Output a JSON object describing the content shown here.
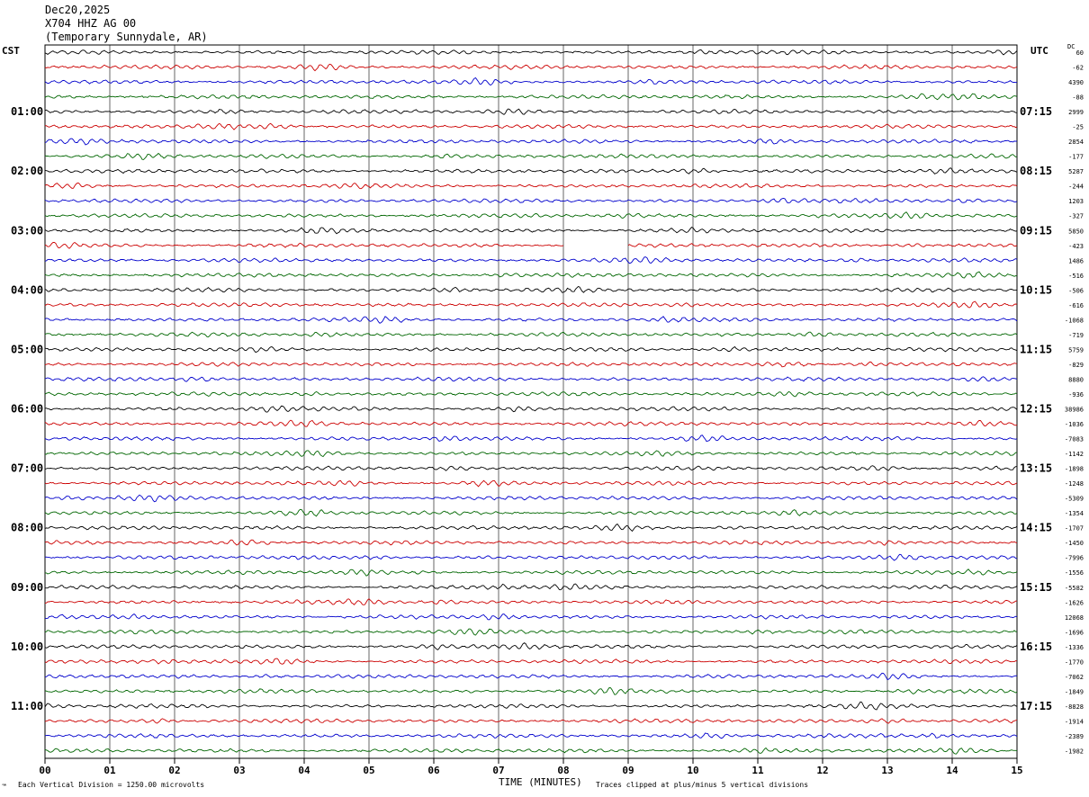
{
  "header": {
    "date": "Dec20,2025",
    "station": "X704 HHZ AG 00",
    "location": "(Temporary Sunnydale, AR)"
  },
  "left_axis_label": "CST",
  "right_axis_label": "UTC",
  "dc_label": "DC",
  "footer": {
    "scale_note": "Each Vertical Division = 1250.00 microvolts",
    "clip_note": "Traces clipped at plus/minus 5 vertical divisions"
  },
  "colors": {
    "trace_cycle": [
      "#000000",
      "#cc0000",
      "#0000cc",
      "#006600"
    ],
    "grid": "#000000"
  },
  "chart_data": {
    "type": "line",
    "title": "",
    "xlabel": "TIME (MINUTES)",
    "ylabel": "",
    "xlim": [
      0,
      15
    ],
    "x_ticks": [
      "00",
      "01",
      "02",
      "03",
      "04",
      "05",
      "06",
      "07",
      "08",
      "09",
      "10",
      "11",
      "12",
      "13",
      "14",
      "15"
    ],
    "trace_minutes": 15,
    "trace_count": 48,
    "left_hour_labels": [
      "01:00",
      "02:00",
      "03:00",
      "04:00",
      "05:00",
      "06:00",
      "07:00",
      "08:00",
      "09:00",
      "10:00",
      "11:00"
    ],
    "right_hour_labels": [
      "07:15",
      "08:15",
      "09:15",
      "10:15",
      "11:15",
      "12:15",
      "13:15",
      "14:15",
      "15:15",
      "16:15",
      "17:15"
    ],
    "dc_offsets": [
      "60",
      "-62",
      "4390",
      "-88",
      "2999",
      "-25",
      "2854",
      "-177",
      "5287",
      "-244",
      "1203",
      "-327",
      "5850",
      "-423",
      "1486",
      "-516",
      "-506",
      "-616",
      "-1068",
      "-719",
      "5759",
      "-829",
      "8880",
      "-936",
      "38986",
      "-1036",
      "-7083",
      "-1142",
      "-1898",
      "-1248",
      "-5309",
      "-1354",
      "-1707",
      "-1450",
      "-7996",
      "-1556",
      "-5582",
      "-1626",
      "12068",
      "-1696",
      "-1336",
      "-1770",
      "-7062",
      "-1849",
      "-8828",
      "-1914",
      "-2389",
      "-1982"
    ],
    "gap": {
      "trace_index": 13,
      "start_minute": 8,
      "end_minute": 9
    }
  }
}
